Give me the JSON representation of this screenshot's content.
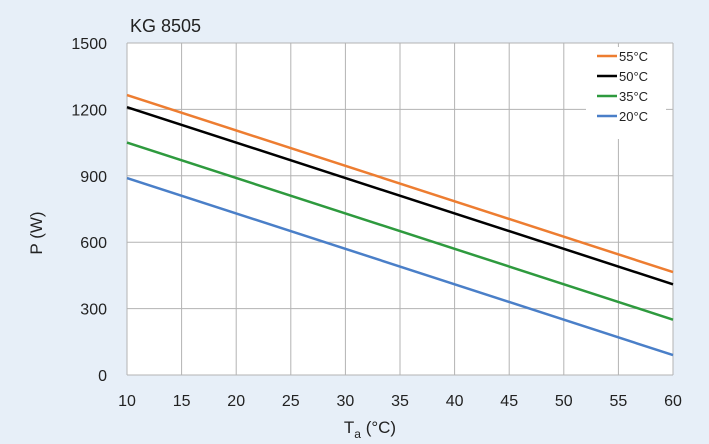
{
  "chart_data": {
    "type": "line",
    "title": "KG 8505",
    "xlabel_main": "T",
    "xlabel_sub": "a",
    "xlabel_unit": " (°C)",
    "ylabel": "P (W)",
    "xlim": [
      10,
      60
    ],
    "ylim": [
      0,
      1500
    ],
    "xticks": [
      10,
      15,
      20,
      25,
      30,
      35,
      40,
      45,
      50,
      55,
      60
    ],
    "yticks": [
      0,
      300,
      600,
      900,
      1200,
      1500
    ],
    "grid": true,
    "legend_position": "top-right",
    "series": [
      {
        "name": "55°C",
        "color": "#ed7d31",
        "x": [
          10,
          60
        ],
        "y": [
          1265,
          465
        ]
      },
      {
        "name": "50°C",
        "color": "#000000",
        "x": [
          10,
          60
        ],
        "y": [
          1210,
          410
        ]
      },
      {
        "name": "35°C",
        "color": "#2e9a3e",
        "x": [
          10,
          60
        ],
        "y": [
          1050,
          250
        ]
      },
      {
        "name": "20°C",
        "color": "#4a7fc8",
        "x": [
          10,
          60
        ],
        "y": [
          890,
          90
        ]
      }
    ]
  }
}
